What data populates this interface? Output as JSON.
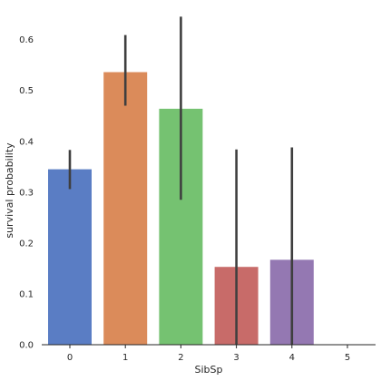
{
  "chart_data": {
    "type": "bar",
    "title": "",
    "xlabel": "SibSp",
    "ylabel": "survival probability",
    "categories": [
      "0",
      "1",
      "2",
      "3",
      "4",
      "5"
    ],
    "values": [
      0.345,
      0.536,
      0.464,
      0.153,
      0.167,
      0.0
    ],
    "ci": [
      [
        0.306,
        0.383
      ],
      [
        0.47,
        0.609
      ],
      [
        0.285,
        0.645
      ],
      [
        0.0,
        0.384
      ],
      [
        0.0,
        0.388
      ],
      [
        0.0,
        0.0
      ]
    ],
    "colors": [
      "#5a7dc4",
      "#db8b5a",
      "#75c271",
      "#c86b69",
      "#9478b2",
      "#8c6a5e"
    ],
    "errorbar_color": "#3f3f3f",
    "ylim": [
      0,
      0.66
    ],
    "yticks": [
      "0.0",
      "0.1",
      "0.2",
      "0.3",
      "0.4",
      "0.5",
      "0.6"
    ],
    "grid": false
  }
}
